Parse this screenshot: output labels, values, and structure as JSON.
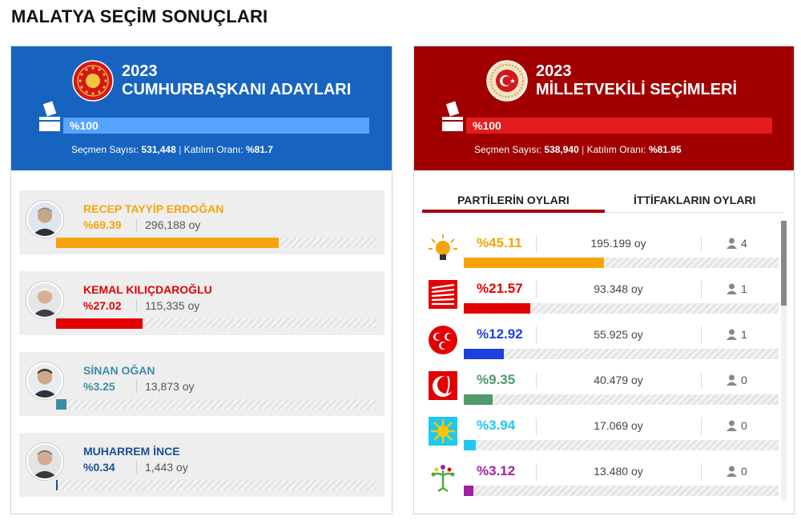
{
  "page_title": "MALATYA SEÇİM SONUÇLARI",
  "colors": {
    "presidential_header": "#1764c0",
    "parliament_header": "#a00000"
  },
  "presidential": {
    "year": "2023",
    "title": "CUMHURBAŞKANI ADAYLARI",
    "progress_label": "%100",
    "progress": 100,
    "voters_label": "Seçmen Sayısı:",
    "voters": "531,448",
    "turnout_label": "Katılım Oranı:",
    "turnout": "%81.7",
    "candidates": [
      {
        "name": "RECEP TAYYİP ERDOĞAN",
        "pct_label": "%69.39",
        "pct": 69.39,
        "votes": "296,188 oy",
        "color": "#f7a30b",
        "bar_color": "#f7a30b"
      },
      {
        "name": "KEMAL KILIÇDAROĞLU",
        "pct_label": "%27.02",
        "pct": 27.02,
        "votes": "115,335 oy",
        "color": "#e20000",
        "bar_color": "#e20000"
      },
      {
        "name": "SİNAN OĞAN",
        "pct_label": "%3.25",
        "pct": 3.25,
        "votes": "13,873 oy",
        "color": "#3d8ca8",
        "bar_color": "#3d8ca8"
      },
      {
        "name": "MUHARREM İNCE",
        "pct_label": "%0.34",
        "pct": 0.34,
        "votes": "1,443 oy",
        "color": "#1a4f9c",
        "bar_color": "#1a4f9c"
      }
    ]
  },
  "parliament": {
    "year": "2023",
    "title": "MİLLETVEKİLİ SEÇİMLERİ",
    "progress_label": "%100",
    "progress": 100,
    "voters_label": "Seçmen Sayısı:",
    "voters": "538,940",
    "turnout_label": "Katılım Oranı:",
    "turnout": "%81.95",
    "tabs": [
      "PARTİLERİN OYLARI",
      "İTTİFAKLARIN OYLARI"
    ],
    "active_tab": 0,
    "parties": [
      {
        "logo": "ak-party-bulb-icon",
        "pct_label": "%45.11",
        "pct": 45.11,
        "votes": "195.199 oy",
        "seats": "4",
        "color": "#f7a30b"
      },
      {
        "logo": "chp-six-arrows-icon",
        "pct_label": "%21.57",
        "pct": 21.57,
        "votes": "93.348 oy",
        "seats": "1",
        "color": "#e20000"
      },
      {
        "logo": "mhp-three-crescents-icon",
        "pct_label": "%12.92",
        "pct": 12.92,
        "votes": "55.925 oy",
        "seats": "1",
        "color": "#1d3fe0"
      },
      {
        "logo": "yrp-crescent-wheat-icon",
        "pct_label": "%9.35",
        "pct": 9.35,
        "votes": "40.479 oy",
        "seats": "0",
        "color": "#4e9a6a"
      },
      {
        "logo": "iyi-sun-icon",
        "pct_label": "%3.94",
        "pct": 3.94,
        "votes": "17.069 oy",
        "seats": "0",
        "color": "#1ec8f0"
      },
      {
        "logo": "ysp-figure-icon",
        "pct_label": "%3.12",
        "pct": 3.12,
        "votes": "13.480 oy",
        "seats": "0",
        "color": "#a020a8"
      }
    ]
  }
}
